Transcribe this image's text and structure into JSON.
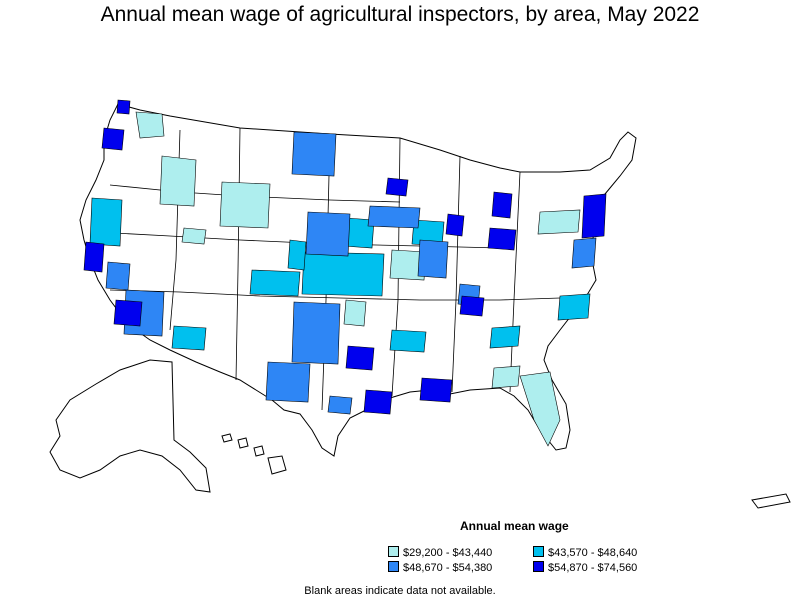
{
  "title": "Annual mean wage of agricultural inspectors, by area, May 2022",
  "legend": {
    "title": "Annual mean wage",
    "items": [
      {
        "label": "$29,200 - $43,440",
        "color": "#aeeeee"
      },
      {
        "label": "$43,570 - $48,640",
        "color": "#00c0ee"
      },
      {
        "label": "$48,670 - $54,380",
        "color": "#2e86f5"
      },
      {
        "label": "$54,870 - $74,560",
        "color": "#0000ee"
      }
    ]
  },
  "footnote": "Blank areas indicate data not available."
}
